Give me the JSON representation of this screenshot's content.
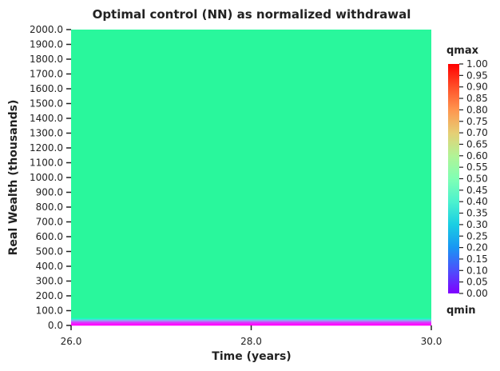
{
  "chart_data": {
    "type": "heatmap",
    "title": "Optimal control (NN) as normalized withdrawal",
    "xlabel": "Time (years)",
    "ylabel": "Real Wealth (thousands)",
    "xlim": [
      26.0,
      30.0
    ],
    "ylim": [
      0.0,
      2000.0
    ],
    "x_ticks": [
      "26.0",
      "28.0",
      "30.0"
    ],
    "y_ticks": [
      "0.0",
      "100.0",
      "200.0",
      "300.0",
      "400.0",
      "500.0",
      "600.0",
      "700.0",
      "800.0",
      "900.0",
      "1000.0",
      "1100.0",
      "1200.0",
      "1300.0",
      "1400.0",
      "1500.0",
      "1600.0",
      "1700.0",
      "1800.0",
      "1900.0",
      "2000.0"
    ],
    "colormap": "rainbow",
    "colorbar": {
      "range": [
        0.0,
        1.0
      ],
      "ticks": [
        "0.00",
        "0.05",
        "0.10",
        "0.15",
        "0.20",
        "0.25",
        "0.30",
        "0.35",
        "0.40",
        "0.45",
        "0.50",
        "0.55",
        "0.60",
        "0.65",
        "0.70",
        "0.75",
        "0.80",
        "0.85",
        "0.90",
        "0.95",
        "1.00"
      ],
      "top_label": "qmax",
      "bottom_label": "qmin"
    },
    "bands": [
      {
        "wealth_range": [
          0,
          12
        ],
        "value": 0.0
      },
      {
        "wealth_range": [
          12,
          22
        ],
        "value": 0.05
      },
      {
        "wealth_range": [
          22,
          32
        ],
        "value": 0.12
      },
      {
        "wealth_range": [
          32,
          42
        ],
        "value": 0.25
      },
      {
        "wealth_range": [
          42,
          52
        ],
        "value": 0.45
      },
      {
        "wealth_range": [
          52,
          2000
        ],
        "value": 0.58
      }
    ]
  }
}
